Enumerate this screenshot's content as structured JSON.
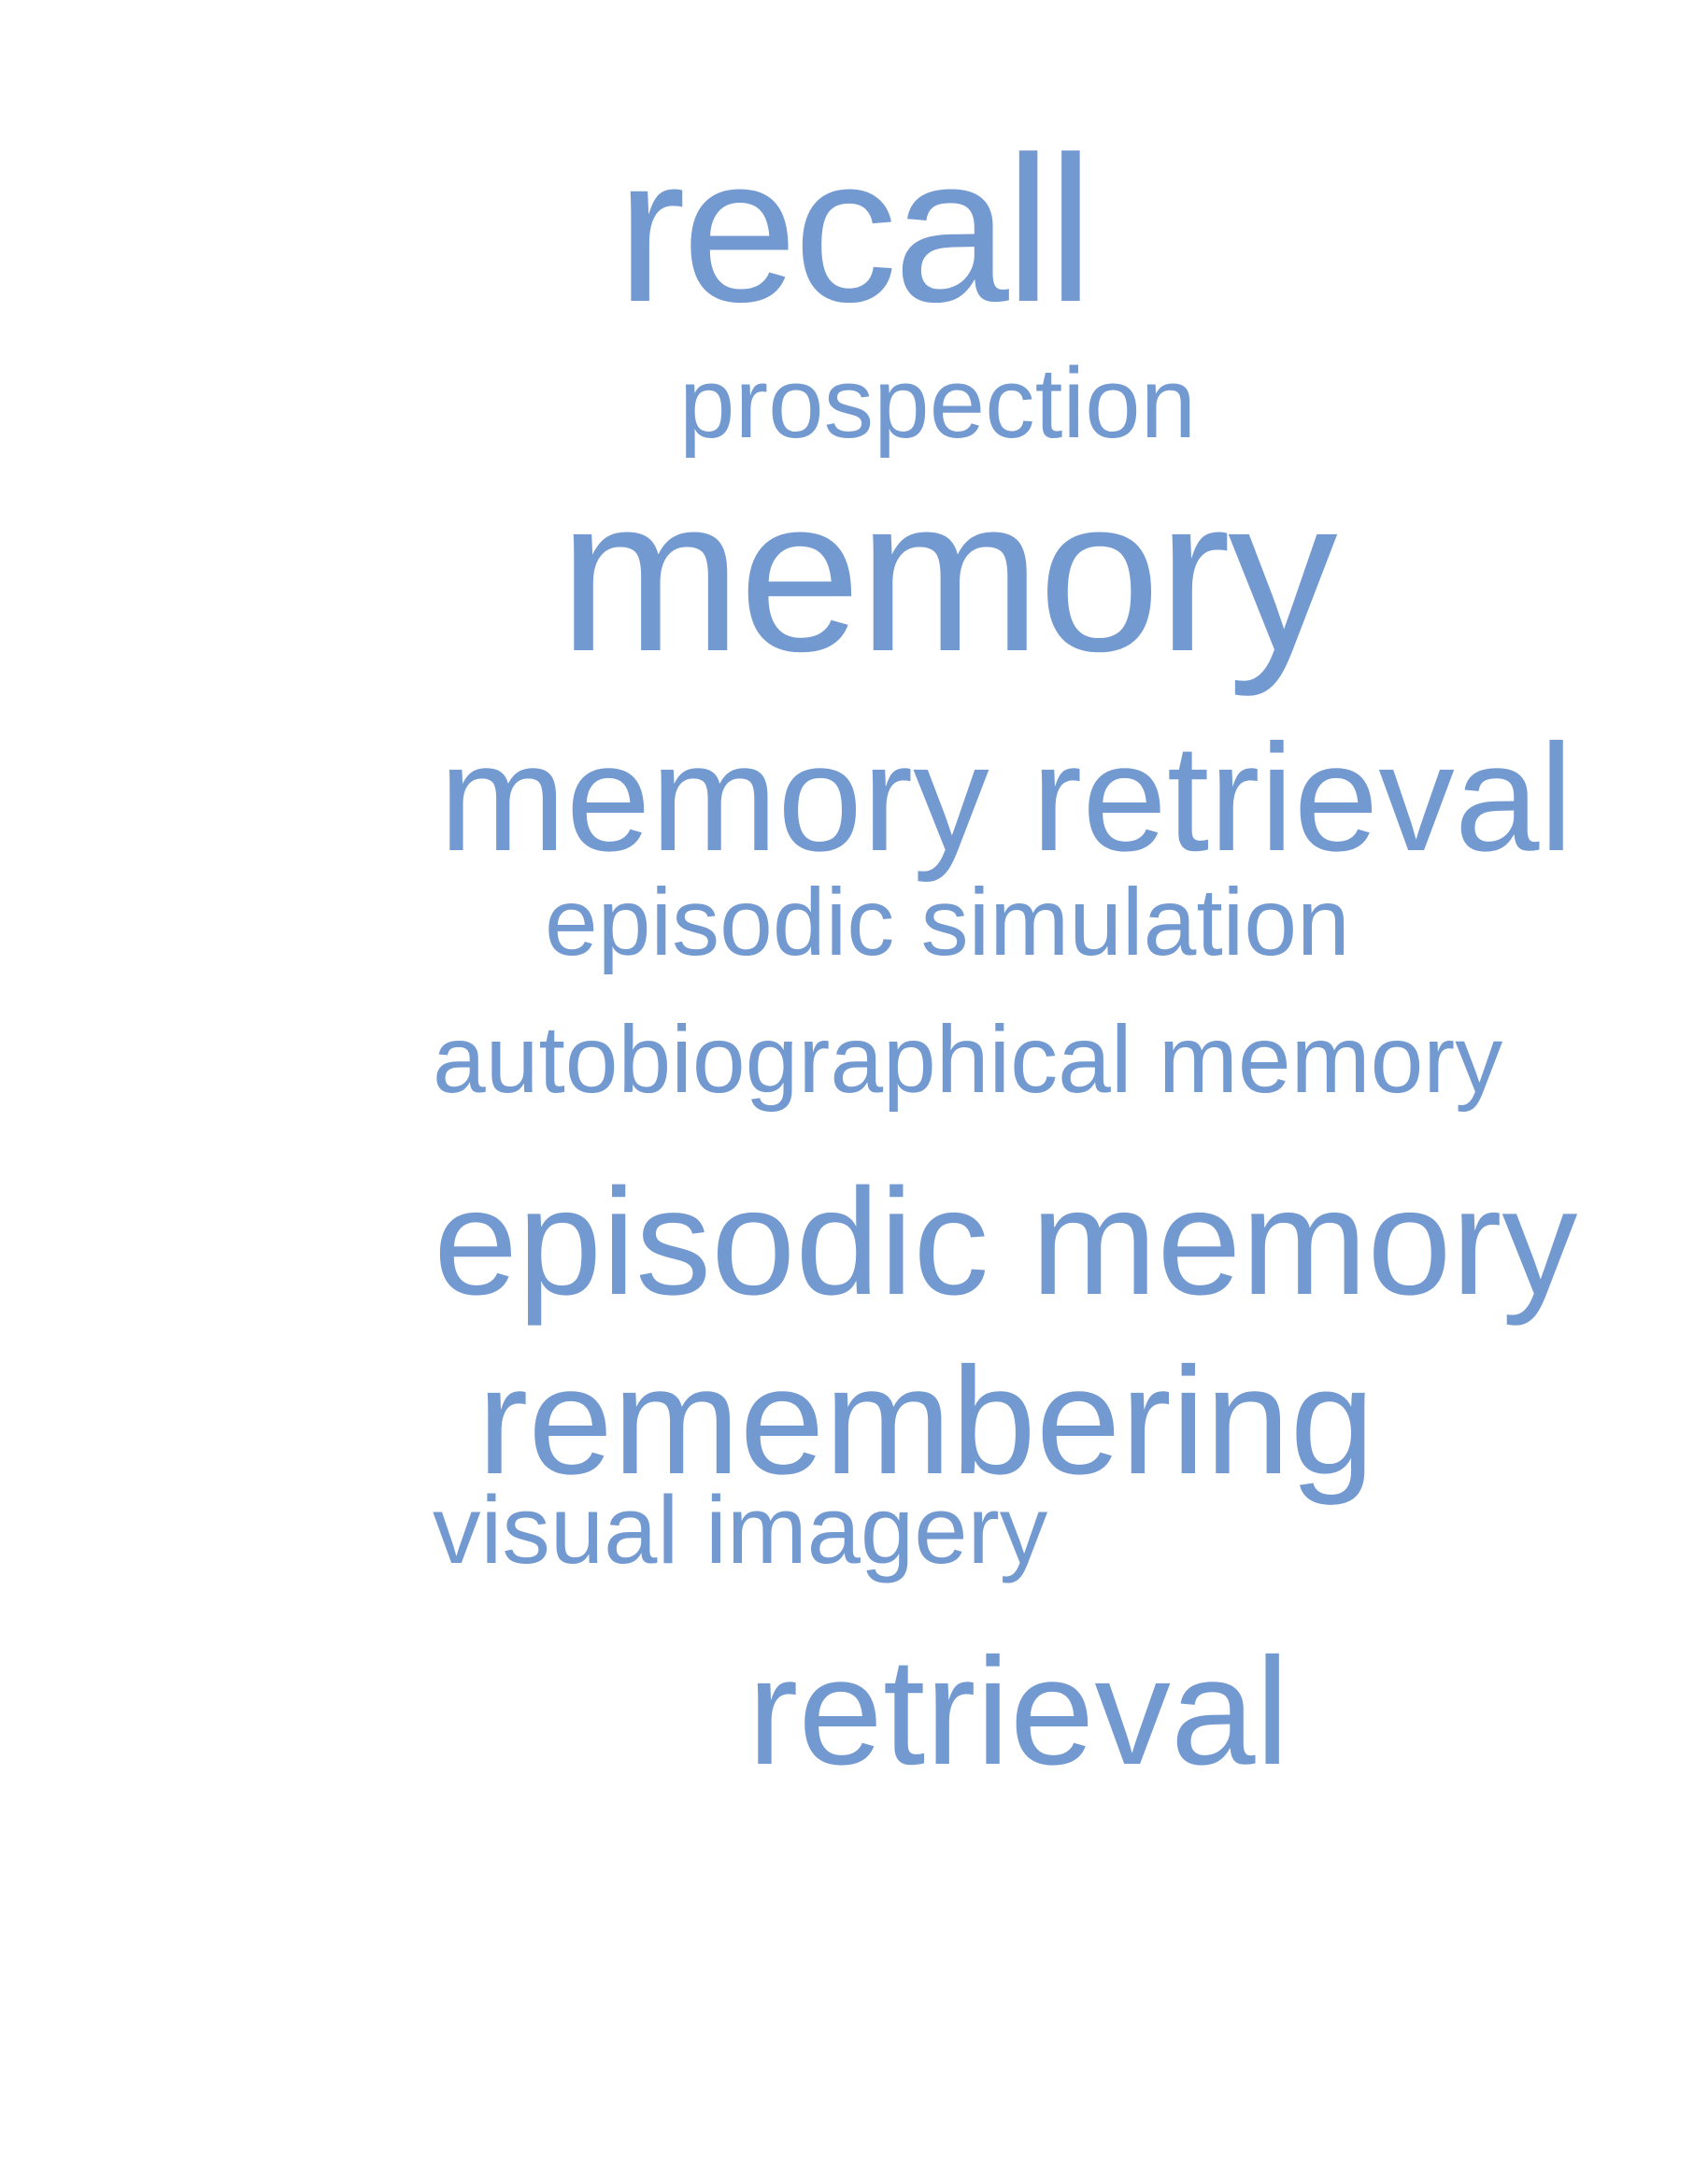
{
  "word_cloud": {
    "color": "#7399d1",
    "words": [
      "recall",
      "prospection",
      "memory",
      "memory retrieval",
      "episodic simulation",
      "autobiographical memory",
      "episodic memory",
      "remembering",
      "visual imagery",
      "retrieval"
    ]
  }
}
